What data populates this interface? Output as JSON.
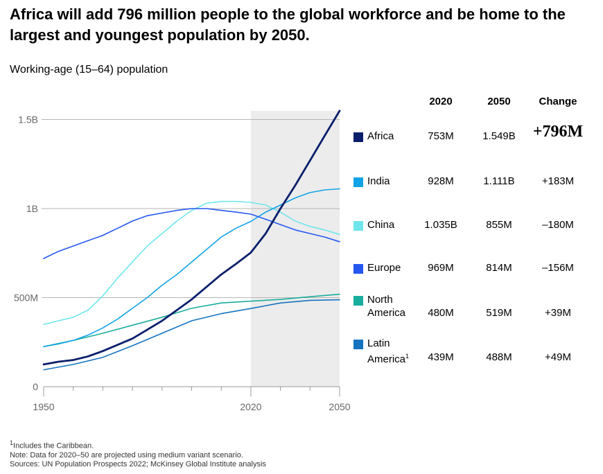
{
  "title": "Africa will add 796 million people to the global workforce and be home to the largest and youngest population by 2050.",
  "subtitle": "Working-age (15–64) population",
  "table_headers": [
    "2020",
    "2050",
    "Change"
  ],
  "rows": [
    {
      "name": "Africa",
      "v2020": "753M",
      "v2050": "1.549B",
      "change": "+796M",
      "color": "#0a1f6b"
    },
    {
      "name": "India",
      "v2020": "928M",
      "v2050": "1.111B",
      "change": "+183M",
      "color": "#12a3e6"
    },
    {
      "name": "China",
      "v2020": "1.035B",
      "v2050": "855M",
      "change": "–180M",
      "color": "#6fe6ec"
    },
    {
      "name": "Europe",
      "v2020": "969M",
      "v2050": "814M",
      "change": "–156M",
      "color": "#2457f0"
    },
    {
      "name": "North",
      "name2": "America",
      "v2020": "480M",
      "v2050": "519M",
      "change": "+39M",
      "color": "#19ad9e"
    },
    {
      "name": "Latin",
      "name2": "America",
      "sup": "1",
      "v2020": "439M",
      "v2050": "488M",
      "change": "+49M",
      "color": "#1573c0"
    }
  ],
  "footnotes": {
    "sup": "1",
    "line1": "Includes the Caribbean.",
    "line2": "Note: Data for 2020–50 are projected using medium variant scenario.",
    "line3": "Sources: UN Population Prospects 2022; McKinsey Global Institute analysis"
  },
  "chart_data": {
    "type": "line",
    "x_ticks": [
      "1950",
      "2020",
      "2050"
    ],
    "y_ticks": [
      "0",
      "500M",
      "1B",
      "1.5B"
    ],
    "xlim": [
      1950,
      2050
    ],
    "ylim": [
      0,
      1.55
    ],
    "y_unit": "billions",
    "projection_shading": [
      2020,
      2050
    ],
    "series": [
      {
        "name": "Latin America",
        "color": "#1573c0",
        "width": 1.6,
        "x": [
          1950,
          1960,
          1970,
          1980,
          1990,
          2000,
          2010,
          2020,
          2030,
          2040,
          2050
        ],
        "y": [
          0.095,
          0.125,
          0.165,
          0.23,
          0.3,
          0.37,
          0.41,
          0.439,
          0.47,
          0.485,
          0.488
        ]
      },
      {
        "name": "North America",
        "color": "#19ad9e",
        "width": 1.6,
        "x": [
          1950,
          1960,
          1970,
          1980,
          1990,
          2000,
          2010,
          2020,
          2030,
          2040,
          2050
        ],
        "y": [
          0.225,
          0.26,
          0.3,
          0.345,
          0.39,
          0.44,
          0.47,
          0.48,
          0.49,
          0.505,
          0.519
        ]
      },
      {
        "name": "China",
        "color": "#6fe6ec",
        "width": 1.6,
        "x": [
          1950,
          1955,
          1960,
          1965,
          1970,
          1975,
          1980,
          1985,
          1990,
          1995,
          2000,
          2005,
          2010,
          2015,
          2020,
          2025,
          2030,
          2035,
          2040,
          2045,
          2050
        ],
        "y": [
          0.35,
          0.37,
          0.39,
          0.43,
          0.51,
          0.61,
          0.7,
          0.79,
          0.86,
          0.93,
          0.99,
          1.03,
          1.04,
          1.04,
          1.035,
          1.02,
          0.98,
          0.93,
          0.9,
          0.88,
          0.855
        ]
      },
      {
        "name": "India",
        "color": "#12a3e6",
        "width": 1.6,
        "x": [
          1950,
          1955,
          1960,
          1965,
          1970,
          1975,
          1980,
          1985,
          1990,
          1995,
          2000,
          2005,
          2010,
          2015,
          2020,
          2025,
          2030,
          2035,
          2040,
          2045,
          2050
        ],
        "y": [
          0.225,
          0.24,
          0.26,
          0.29,
          0.33,
          0.38,
          0.44,
          0.5,
          0.57,
          0.63,
          0.7,
          0.77,
          0.84,
          0.89,
          0.928,
          0.98,
          1.02,
          1.06,
          1.09,
          1.105,
          1.111
        ]
      },
      {
        "name": "Europe",
        "color": "#2457f0",
        "width": 1.6,
        "x": [
          1950,
          1955,
          1960,
          1965,
          1970,
          1975,
          1980,
          1985,
          1990,
          1995,
          2000,
          2005,
          2010,
          2015,
          2020,
          2025,
          2030,
          2035,
          2040,
          2045,
          2050
        ],
        "y": [
          0.72,
          0.76,
          0.79,
          0.82,
          0.85,
          0.89,
          0.93,
          0.96,
          0.975,
          0.99,
          1.0,
          1.0,
          0.99,
          0.98,
          0.969,
          0.94,
          0.91,
          0.88,
          0.86,
          0.84,
          0.814
        ]
      },
      {
        "name": "Africa",
        "color": "#0a1f6b",
        "width": 2.8,
        "x": [
          1950,
          1955,
          1960,
          1965,
          1970,
          1975,
          1980,
          1985,
          1990,
          1995,
          2000,
          2005,
          2010,
          2015,
          2020,
          2025,
          2030,
          2035,
          2040,
          2045,
          2050
        ],
        "y": [
          0.125,
          0.14,
          0.15,
          0.17,
          0.2,
          0.235,
          0.27,
          0.32,
          0.37,
          0.43,
          0.49,
          0.56,
          0.63,
          0.69,
          0.753,
          0.86,
          1.0,
          1.13,
          1.27,
          1.41,
          1.549
        ]
      }
    ]
  }
}
